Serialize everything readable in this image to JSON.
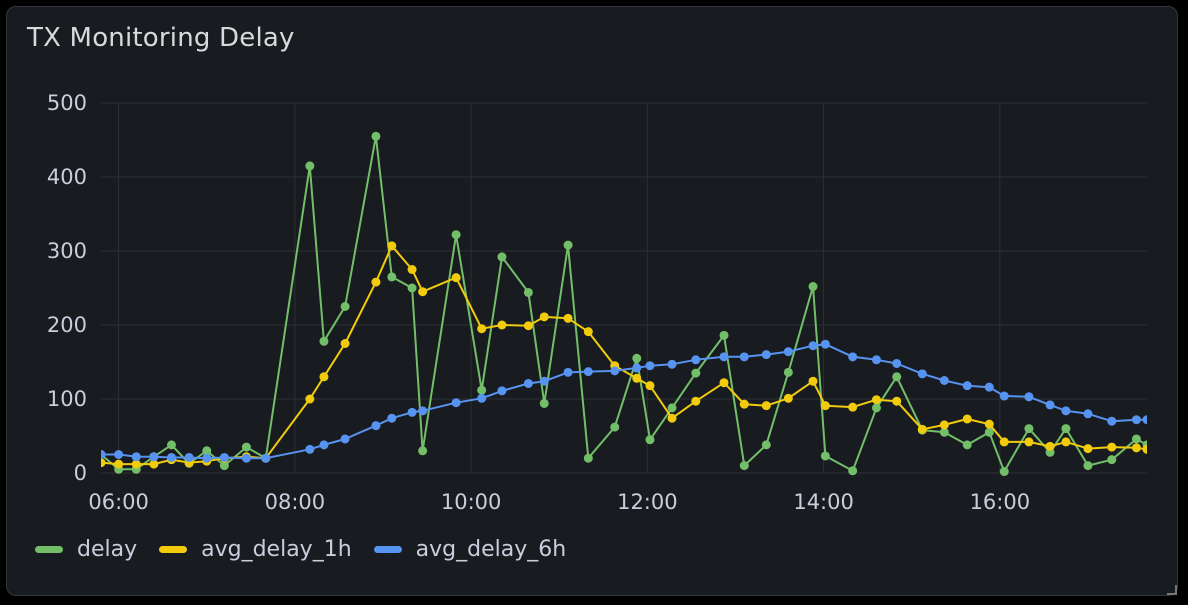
{
  "panel": {
    "title": "TX Monitoring Delay"
  },
  "chart_data": {
    "type": "line",
    "title": "TX Monitoring Delay",
    "xlabel": "",
    "ylabel": "",
    "ylim": [
      0,
      500
    ],
    "xlim": [
      5.8,
      17.67
    ],
    "y_ticks": [
      0,
      100,
      200,
      300,
      400,
      500
    ],
    "x_ticks": [
      {
        "value": 6,
        "label": "06:00"
      },
      {
        "value": 8,
        "label": "08:00"
      },
      {
        "value": 10,
        "label": "10:00"
      },
      {
        "value": 12,
        "label": "12:00"
      },
      {
        "value": 14,
        "label": "14:00"
      },
      {
        "value": 16,
        "label": "16:00"
      }
    ],
    "grid": true,
    "legend_position": "bottom-left",
    "series": [
      {
        "name": "delay",
        "color": "#73bf69",
        "x": [
          5.8,
          6.0,
          6.2,
          6.4,
          6.6,
          6.8,
          7.0,
          7.2,
          7.45,
          7.67,
          8.17,
          8.33,
          8.57,
          8.92,
          9.1,
          9.33,
          9.45,
          9.83,
          10.12,
          10.35,
          10.65,
          10.83,
          11.1,
          11.33,
          11.63,
          11.88,
          12.03,
          12.28,
          12.55,
          12.87,
          13.1,
          13.35,
          13.6,
          13.88,
          14.02,
          14.33,
          14.6,
          14.83,
          15.12,
          15.37,
          15.63,
          15.88,
          16.05,
          16.33,
          16.57,
          16.75,
          17.0,
          17.27,
          17.55,
          17.67
        ],
        "y": [
          25,
          5,
          5,
          22,
          38,
          13,
          30,
          10,
          35,
          20,
          415,
          178,
          225,
          455,
          265,
          250,
          30,
          322,
          112,
          292,
          244,
          94,
          308,
          20,
          62,
          155,
          45,
          88,
          135,
          186,
          10,
          38,
          136,
          252,
          23,
          3,
          88,
          130,
          58,
          55,
          38,
          55,
          2,
          60,
          28,
          60,
          10,
          18,
          46,
          38
        ]
      },
      {
        "name": "avg_delay_1h",
        "color": "#f2cc0c",
        "x": [
          5.8,
          6.0,
          6.2,
          6.4,
          6.6,
          6.8,
          7.0,
          7.2,
          7.45,
          7.67,
          8.17,
          8.33,
          8.57,
          8.92,
          9.1,
          9.33,
          9.45,
          9.83,
          10.12,
          10.35,
          10.65,
          10.83,
          11.1,
          11.33,
          11.63,
          11.88,
          12.03,
          12.28,
          12.55,
          12.87,
          13.1,
          13.35,
          13.6,
          13.88,
          14.02,
          14.33,
          14.6,
          14.83,
          15.12,
          15.37,
          15.63,
          15.88,
          16.05,
          16.33,
          16.57,
          16.75,
          17.0,
          17.27,
          17.55,
          17.67
        ],
        "y": [
          14,
          12,
          12,
          12,
          18,
          14,
          16,
          20,
          22,
          20,
          100,
          130,
          175,
          258,
          307,
          275,
          245,
          264,
          195,
          200,
          199,
          211,
          209,
          191,
          145,
          128,
          118,
          74,
          97,
          122,
          93,
          91,
          101,
          124,
          91,
          89,
          99,
          97,
          59,
          65,
          73,
          66,
          42,
          42,
          36,
          42,
          33,
          35,
          34,
          32
        ]
      },
      {
        "name": "avg_delay_6h",
        "color": "#5794f2",
        "x": [
          5.8,
          6.0,
          6.2,
          6.4,
          6.6,
          6.8,
          7.0,
          7.2,
          7.45,
          7.67,
          8.17,
          8.33,
          8.57,
          8.92,
          9.1,
          9.33,
          9.45,
          9.83,
          10.12,
          10.35,
          10.65,
          10.83,
          11.1,
          11.33,
          11.63,
          11.88,
          12.03,
          12.28,
          12.55,
          12.87,
          13.1,
          13.35,
          13.6,
          13.88,
          14.02,
          14.33,
          14.6,
          14.83,
          15.12,
          15.37,
          15.63,
          15.88,
          16.05,
          16.33,
          16.57,
          16.75,
          17.0,
          17.27,
          17.55,
          17.67
        ],
        "y": [
          25,
          25,
          22,
          22,
          21,
          21,
          20,
          21,
          20,
          20,
          32,
          38,
          46,
          64,
          74,
          82,
          84,
          95,
          101,
          111,
          121,
          124,
          136,
          137,
          138,
          142,
          145,
          147,
          153,
          157,
          157,
          160,
          164,
          172,
          174,
          157,
          153,
          148,
          134,
          125,
          118,
          116,
          104,
          103,
          92,
          84,
          80,
          70,
          72,
          72
        ]
      }
    ]
  }
}
